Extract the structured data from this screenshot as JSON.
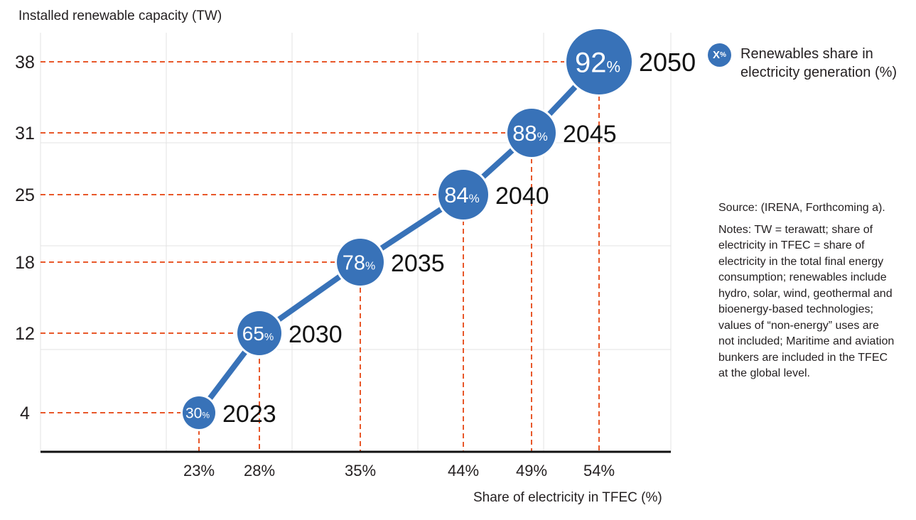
{
  "chart_data": {
    "type": "scatter",
    "ylabel": "Installed renewable capacity (TW)",
    "xlabel": "Share of electricity in TFEC (%)",
    "x_ticks": [
      "23%",
      "28%",
      "35%",
      "44%",
      "49%",
      "54%"
    ],
    "y_ticks": [
      4,
      12,
      18,
      25,
      31,
      38
    ],
    "grid": true,
    "points": [
      {
        "year": "2023",
        "x": 23,
        "y": 4,
        "renewables_share": "30"
      },
      {
        "year": "2030",
        "x": 28,
        "y": 12,
        "renewables_share": "65"
      },
      {
        "year": "2035",
        "x": 35,
        "y": 18,
        "renewables_share": "78"
      },
      {
        "year": "2040",
        "x": 44,
        "y": 25,
        "renewables_share": "84"
      },
      {
        "year": "2045",
        "x": 49,
        "y": 31,
        "renewables_share": "88"
      },
      {
        "year": "2050",
        "x": 54,
        "y": 38,
        "renewables_share": "92"
      }
    ],
    "colors": {
      "bubble": "#3872b8",
      "line": "#3872b8",
      "guide": "#e8582a",
      "grid": "#e3e3e3"
    }
  },
  "legend": {
    "symbol": "X",
    "label": "Renewables share in electricity generation (%)"
  },
  "source": "Source: (IRENA, Forthcoming a).",
  "notes": "Notes: TW = terawatt; share of electricity in TFEC = share of electricity in the total final energy consumption; renewables include hydro, solar, wind, geothermal and bioenergy-based technologies; values of “non-energy” uses are not included; Maritime and aviation bunkers are included in the TFEC at the global level."
}
